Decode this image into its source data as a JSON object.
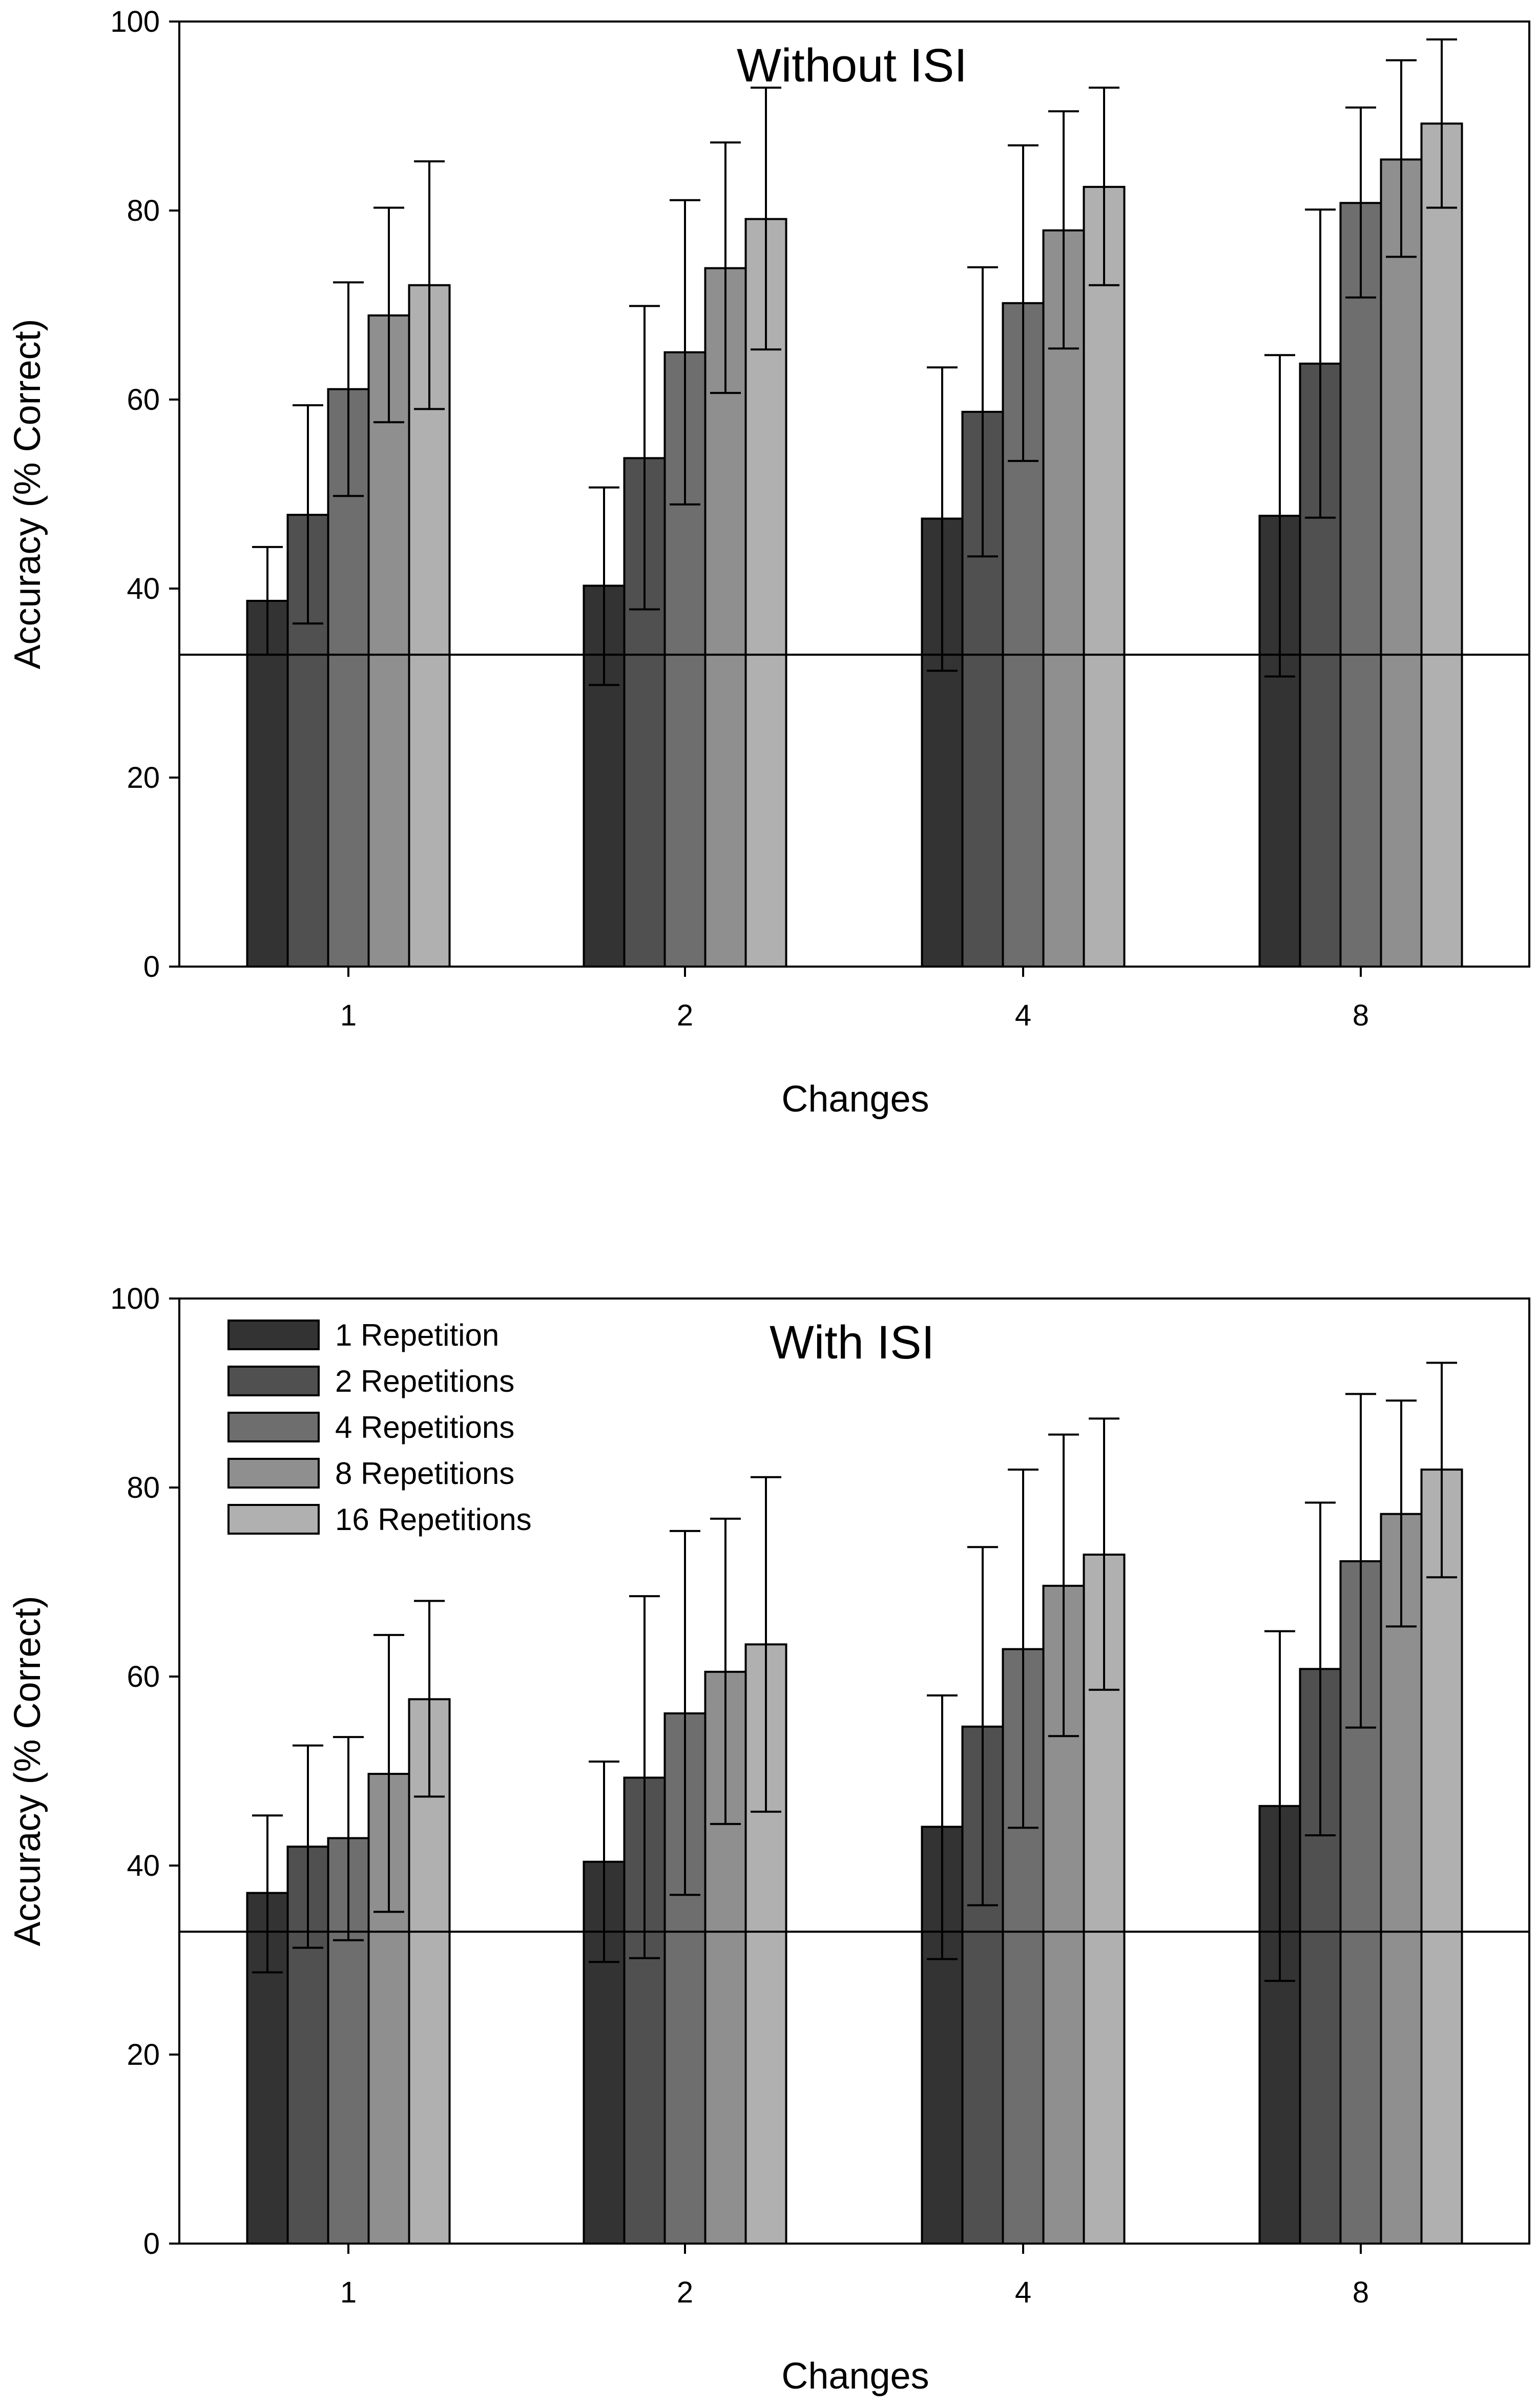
{
  "chart_data": [
    {
      "type": "bar",
      "title": "Without ISI",
      "xlabel": "Changes",
      "ylabel": "Accuracy (% Correct)",
      "ylim": [
        0,
        100
      ],
      "yticks": [
        0,
        20,
        40,
        60,
        80,
        100
      ],
      "chance_line": 33,
      "categories": [
        "1",
        "2",
        "4",
        "8"
      ],
      "legend": false,
      "series": [
        {
          "name": "1 Repetition",
          "color": "#333333",
          "values": [
            38.7,
            40.3,
            47.4,
            47.7
          ],
          "err_low": [
            33.0,
            29.8,
            31.3,
            30.7
          ],
          "err_high": [
            44.4,
            50.7,
            63.4,
            64.7
          ]
        },
        {
          "name": "2 Repetitions",
          "color": "#505050",
          "values": [
            47.8,
            53.8,
            58.7,
            63.8
          ],
          "err_low": [
            36.3,
            37.8,
            43.4,
            47.5
          ],
          "err_high": [
            59.4,
            69.9,
            74.0,
            80.1
          ]
        },
        {
          "name": "4 Repetitions",
          "color": "#6e6e6e",
          "values": [
            61.1,
            65.0,
            70.2,
            80.8
          ],
          "err_low": [
            49.8,
            48.9,
            53.5,
            70.8
          ],
          "err_high": [
            72.4,
            81.1,
            86.9,
            90.9
          ]
        },
        {
          "name": "8 Repetitions",
          "color": "#8f8f8f",
          "values": [
            68.9,
            73.9,
            77.9,
            85.4
          ],
          "err_low": [
            57.6,
            60.7,
            65.4,
            75.1
          ],
          "err_high": [
            80.3,
            87.2,
            90.5,
            95.9
          ]
        },
        {
          "name": "16 Repetitions",
          "color": "#b0b0b0",
          "values": [
            72.1,
            79.1,
            82.5,
            89.2
          ],
          "err_low": [
            59.0,
            65.3,
            72.1,
            80.3
          ],
          "err_high": [
            85.2,
            93.0,
            93.0,
            98.1
          ]
        }
      ]
    },
    {
      "type": "bar",
      "title": "With ISI",
      "xlabel": "Changes",
      "ylabel": "Accuracy (% Correct)",
      "ylim": [
        0,
        100
      ],
      "yticks": [
        0,
        20,
        40,
        60,
        80,
        100
      ],
      "chance_line": 33,
      "categories": [
        "1",
        "2",
        "4",
        "8"
      ],
      "legend": "top-left",
      "series": [
        {
          "name": "1 Repetition",
          "color": "#333333",
          "values": [
            37.1,
            40.4,
            44.1,
            46.3
          ],
          "err_low": [
            28.7,
            29.8,
            30.1,
            27.8
          ],
          "err_high": [
            45.3,
            51.0,
            58.0,
            64.8
          ]
        },
        {
          "name": "2 Repetitions",
          "color": "#505050",
          "values": [
            42.0,
            49.3,
            54.7,
            60.8
          ],
          "err_low": [
            31.3,
            30.2,
            35.8,
            43.2
          ],
          "err_high": [
            52.7,
            68.5,
            73.7,
            78.4
          ]
        },
        {
          "name": "4 Repetitions",
          "color": "#6e6e6e",
          "values": [
            42.9,
            56.1,
            62.9,
            72.2
          ],
          "err_low": [
            32.1,
            36.9,
            44.0,
            54.6
          ],
          "err_high": [
            53.6,
            75.4,
            81.9,
            89.9
          ]
        },
        {
          "name": "8 Repetitions",
          "color": "#8f8f8f",
          "values": [
            49.7,
            60.5,
            69.6,
            77.2
          ],
          "err_low": [
            35.1,
            44.4,
            53.7,
            65.3
          ],
          "err_high": [
            64.4,
            76.7,
            85.6,
            89.2
          ]
        },
        {
          "name": "16 Repetitions",
          "color": "#b0b0b0",
          "values": [
            57.6,
            63.4,
            72.9,
            81.9
          ],
          "err_low": [
            47.3,
            45.7,
            58.6,
            70.5
          ],
          "err_high": [
            68.0,
            81.1,
            87.3,
            93.2
          ]
        }
      ]
    }
  ]
}
